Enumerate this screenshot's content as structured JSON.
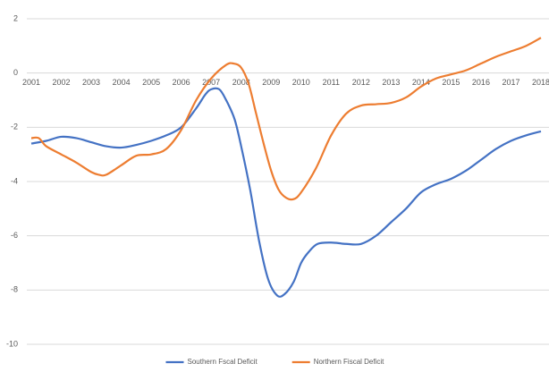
{
  "chart_data": {
    "type": "line",
    "xlim": [
      2001,
      2018
    ],
    "xticks": [
      2001,
      2002,
      2003,
      2004,
      2005,
      2006,
      2007,
      2008,
      2009,
      2010,
      2011,
      2012,
      2013,
      2014,
      2015,
      2016,
      2017,
      2018
    ],
    "ylim": [
      -10,
      2
    ],
    "yticks": [
      -10,
      -8,
      -6,
      -4,
      -2,
      0,
      2
    ],
    "grid": true,
    "legend": "bottom",
    "series": [
      {
        "name": "Southern Fscal Deficit",
        "color": "#4472c4",
        "x": [
          2001,
          2001.5,
          2002,
          2002.5,
          2003,
          2003.5,
          2004,
          2004.5,
          2005,
          2005.5,
          2006,
          2006.5,
          2006.8,
          2007,
          2007.27,
          2007.5,
          2007.78,
          2008,
          2008.3,
          2008.6,
          2008.9,
          2009.2,
          2009.45,
          2009.75,
          2010,
          2010.25,
          2010.55,
          2011,
          2011.5,
          2012,
          2012.5,
          2013,
          2013.5,
          2014,
          2014.5,
          2015,
          2015.5,
          2016,
          2016.5,
          2017,
          2017.5,
          2018
        ],
        "values": [
          -2.6,
          -2.5,
          -2.35,
          -2.4,
          -2.55,
          -2.7,
          -2.75,
          -2.65,
          -2.5,
          -2.3,
          -2.0,
          -1.3,
          -0.8,
          -0.6,
          -0.6,
          -1.0,
          -1.7,
          -2.7,
          -4.3,
          -6.2,
          -7.6,
          -8.2,
          -8.15,
          -7.7,
          -7.0,
          -6.6,
          -6.3,
          -6.25,
          -6.3,
          -6.3,
          -6.0,
          -5.5,
          -5.0,
          -4.4,
          -4.1,
          -3.9,
          -3.6,
          -3.2,
          -2.8,
          -2.5,
          -2.3,
          -2.15
        ]
      },
      {
        "name": "Northern Fiscal Deficit",
        "color": "#ed7d31",
        "x": [
          2001,
          2001.25,
          2001.5,
          2002,
          2002.5,
          2003,
          2003.25,
          2003.5,
          2004,
          2004.5,
          2005,
          2005.5,
          2006,
          2006.5,
          2007,
          2007.5,
          2007.75,
          2008,
          2008.25,
          2008.5,
          2008.75,
          2009,
          2009.25,
          2009.5,
          2009.75,
          2010,
          2010.5,
          2011,
          2011.5,
          2012,
          2012.5,
          2013,
          2013.5,
          2014,
          2014.5,
          2015,
          2015.5,
          2016,
          2016.5,
          2017,
          2017.5,
          2018
        ],
        "values": [
          -2.4,
          -2.4,
          -2.7,
          -3.0,
          -3.3,
          -3.65,
          -3.75,
          -3.75,
          -3.4,
          -3.05,
          -3.0,
          -2.8,
          -2.1,
          -1.0,
          -0.2,
          0.3,
          0.35,
          0.2,
          -0.4,
          -1.5,
          -2.6,
          -3.6,
          -4.3,
          -4.6,
          -4.65,
          -4.4,
          -3.5,
          -2.3,
          -1.5,
          -1.2,
          -1.15,
          -1.1,
          -0.9,
          -0.5,
          -0.2,
          -0.05,
          0.1,
          0.35,
          0.6,
          0.8,
          1.0,
          1.3
        ]
      }
    ]
  }
}
